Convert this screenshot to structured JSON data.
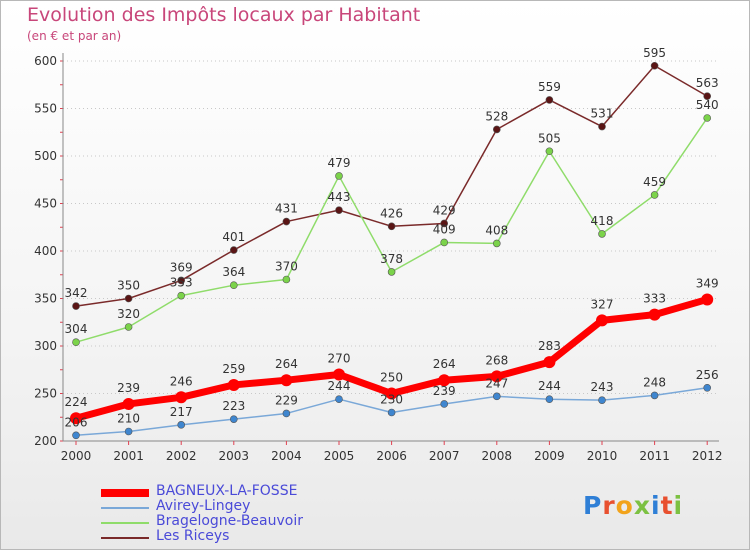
{
  "header": {
    "title": "Evolution des Impôts locaux par Habitant",
    "subtitle": "(en € et par an)"
  },
  "logo": {
    "text": "Proxiti",
    "colors": [
      "#2f7fd6",
      "#e8502f",
      "#f2a31b",
      "#7cc142",
      "#2f7fd6",
      "#e8502f",
      "#7cc142"
    ]
  },
  "chart_data": {
    "type": "line",
    "title": "Evolution des Impôts locaux par Habitant",
    "subtitle": "(en € et par an)",
    "x": [
      "2000",
      "2001",
      "2002",
      "2003",
      "2004",
      "2005",
      "2006",
      "2007",
      "2008",
      "2009",
      "2010",
      "2011",
      "2012"
    ],
    "yticks": [
      "200",
      "250",
      "300",
      "350",
      "400",
      "450",
      "500",
      "550",
      "600"
    ],
    "ylim": [
      200,
      600
    ],
    "grid": "horizontal-dotted",
    "legend_position": "bottom-left",
    "series": [
      {
        "name": "Les Riceys",
        "color": "#7a2a2a",
        "marker": "#5a1515",
        "values": [
          342,
          350,
          369,
          401,
          431,
          443,
          426,
          429,
          528,
          559,
          531,
          595,
          563
        ],
        "labels": [
          "342",
          "350",
          "369",
          "401",
          "431",
          "443",
          "426",
          "429",
          "528",
          "559",
          "531",
          "595",
          "563"
        ]
      },
      {
        "name": "Bragelogne-Beauvoir",
        "color": "#8fdc6a",
        "marker": "#7bd34a",
        "values": [
          304,
          320,
          353,
          364,
          370,
          479,
          378,
          409,
          408,
          505,
          418,
          459,
          540
        ],
        "labels": [
          "304",
          "320",
          "353",
          "364",
          "370",
          "479",
          "378",
          "409",
          "408",
          "505",
          "418",
          "459",
          "540"
        ]
      },
      {
        "name": "Avirey-Lingey",
        "color": "#7aa8d8",
        "marker": "#3f86cf",
        "values": [
          206,
          210,
          217,
          223,
          229,
          244,
          230,
          239,
          247,
          244,
          243,
          248,
          256
        ],
        "labels": [
          "206",
          "210",
          "217",
          "223",
          "229",
          "244",
          "230",
          "239",
          "247",
          "244",
          "243",
          "248",
          "256"
        ]
      },
      {
        "name": "BAGNEUX-LA-FOSSE",
        "color": "#ff0000",
        "marker": "#ff0000",
        "values": [
          224,
          239,
          246,
          259,
          264,
          270,
          250,
          264,
          268,
          283,
          327,
          333,
          349
        ],
        "labels": [
          "224",
          "239",
          "246",
          "259",
          "264",
          "270",
          "250",
          "264",
          "268",
          "283",
          "327",
          "333",
          "349"
        ]
      }
    ]
  },
  "legend": [
    {
      "name": "BAGNEUX-LA-FOSSE",
      "color": "#ff0000",
      "thick": true
    },
    {
      "name": "Avirey-Lingey",
      "color": "#7aa8d8",
      "thick": false
    },
    {
      "name": "Bragelogne-Beauvoir",
      "color": "#8fdc6a",
      "thick": false
    },
    {
      "name": "Les Riceys",
      "color": "#7a2a2a",
      "thick": false
    }
  ]
}
